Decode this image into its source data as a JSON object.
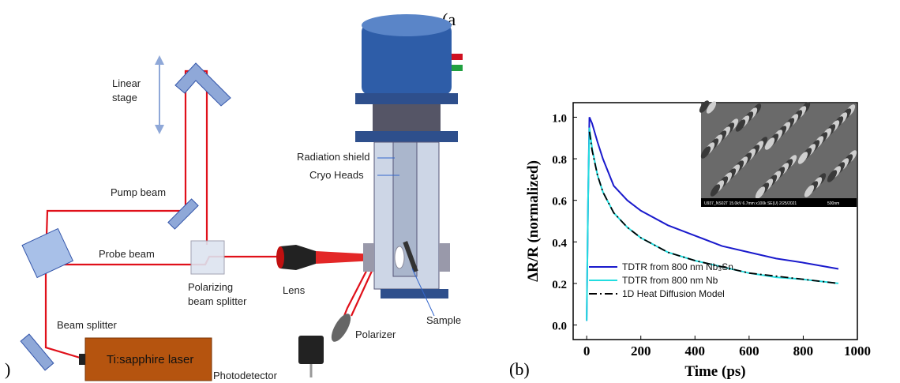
{
  "panel_labels": {
    "a_open": "(a",
    "a_close": ")",
    "b": "(b)"
  },
  "diagram": {
    "labels": [
      "Linear",
      "stage",
      "Pump beam",
      "Probe beam",
      "Polarizing",
      "beam splitter",
      "Lens",
      "Beam splitter",
      "Ti:sapphire laser",
      "Photodetector",
      "Polarizer",
      "Sample",
      "Radiation shield",
      "Cryo Heads"
    ]
  },
  "chart_data": {
    "type": "line",
    "xlabel": "Time (ps)",
    "ylabel": "ΔR/R (normalized)",
    "x": [
      0,
      5,
      10,
      20,
      40,
      60,
      100,
      150,
      200,
      300,
      400,
      500,
      600,
      700,
      800,
      930
    ],
    "series": [
      {
        "name": "TDTR from 800 nm Nb₃Sn",
        "color": "#1a1acc",
        "dash": "solid",
        "values": [
          0.02,
          0.6,
          1.0,
          0.97,
          0.88,
          0.8,
          0.67,
          0.6,
          0.55,
          0.48,
          0.43,
          0.38,
          0.35,
          0.32,
          0.3,
          0.27
        ]
      },
      {
        "name": "TDTR from 800 nm Nb",
        "color": "#22dde0",
        "dash": "solid",
        "values": [
          0.02,
          0.6,
          0.95,
          0.85,
          0.72,
          0.64,
          0.54,
          0.47,
          0.42,
          0.35,
          0.31,
          0.28,
          0.25,
          0.23,
          0.22,
          0.2
        ]
      },
      {
        "name": "1D Heat Diffusion Model",
        "color": "#000000",
        "dash": "dashdot",
        "values": [
          null,
          null,
          0.93,
          0.84,
          0.72,
          0.64,
          0.54,
          0.47,
          0.42,
          0.35,
          0.31,
          0.28,
          0.25,
          0.235,
          0.22,
          0.2
        ]
      }
    ],
    "xlim": [
      -50,
      1000
    ],
    "xticks": [
      0,
      200,
      400,
      600,
      800,
      1000
    ],
    "ylim": [
      -0.07,
      1.07
    ],
    "yticks": [
      {
        "value": 0,
        "label": "0.0"
      },
      {
        "value": 0.2,
        "label": "0.2"
      },
      {
        "value": 0.4,
        "label": "0.4"
      },
      {
        "value": 0.6,
        "label": "0.6"
      },
      {
        "value": 0.8,
        "label": "0.8"
      },
      {
        "value": 1,
        "label": "1.0"
      }
    ],
    "legend": "lower left",
    "inset": {
      "caption": "U937_NS02T 15.0kV 6.7mm x100k SE(U) 2/25/2021",
      "scale": "500nm"
    }
  }
}
